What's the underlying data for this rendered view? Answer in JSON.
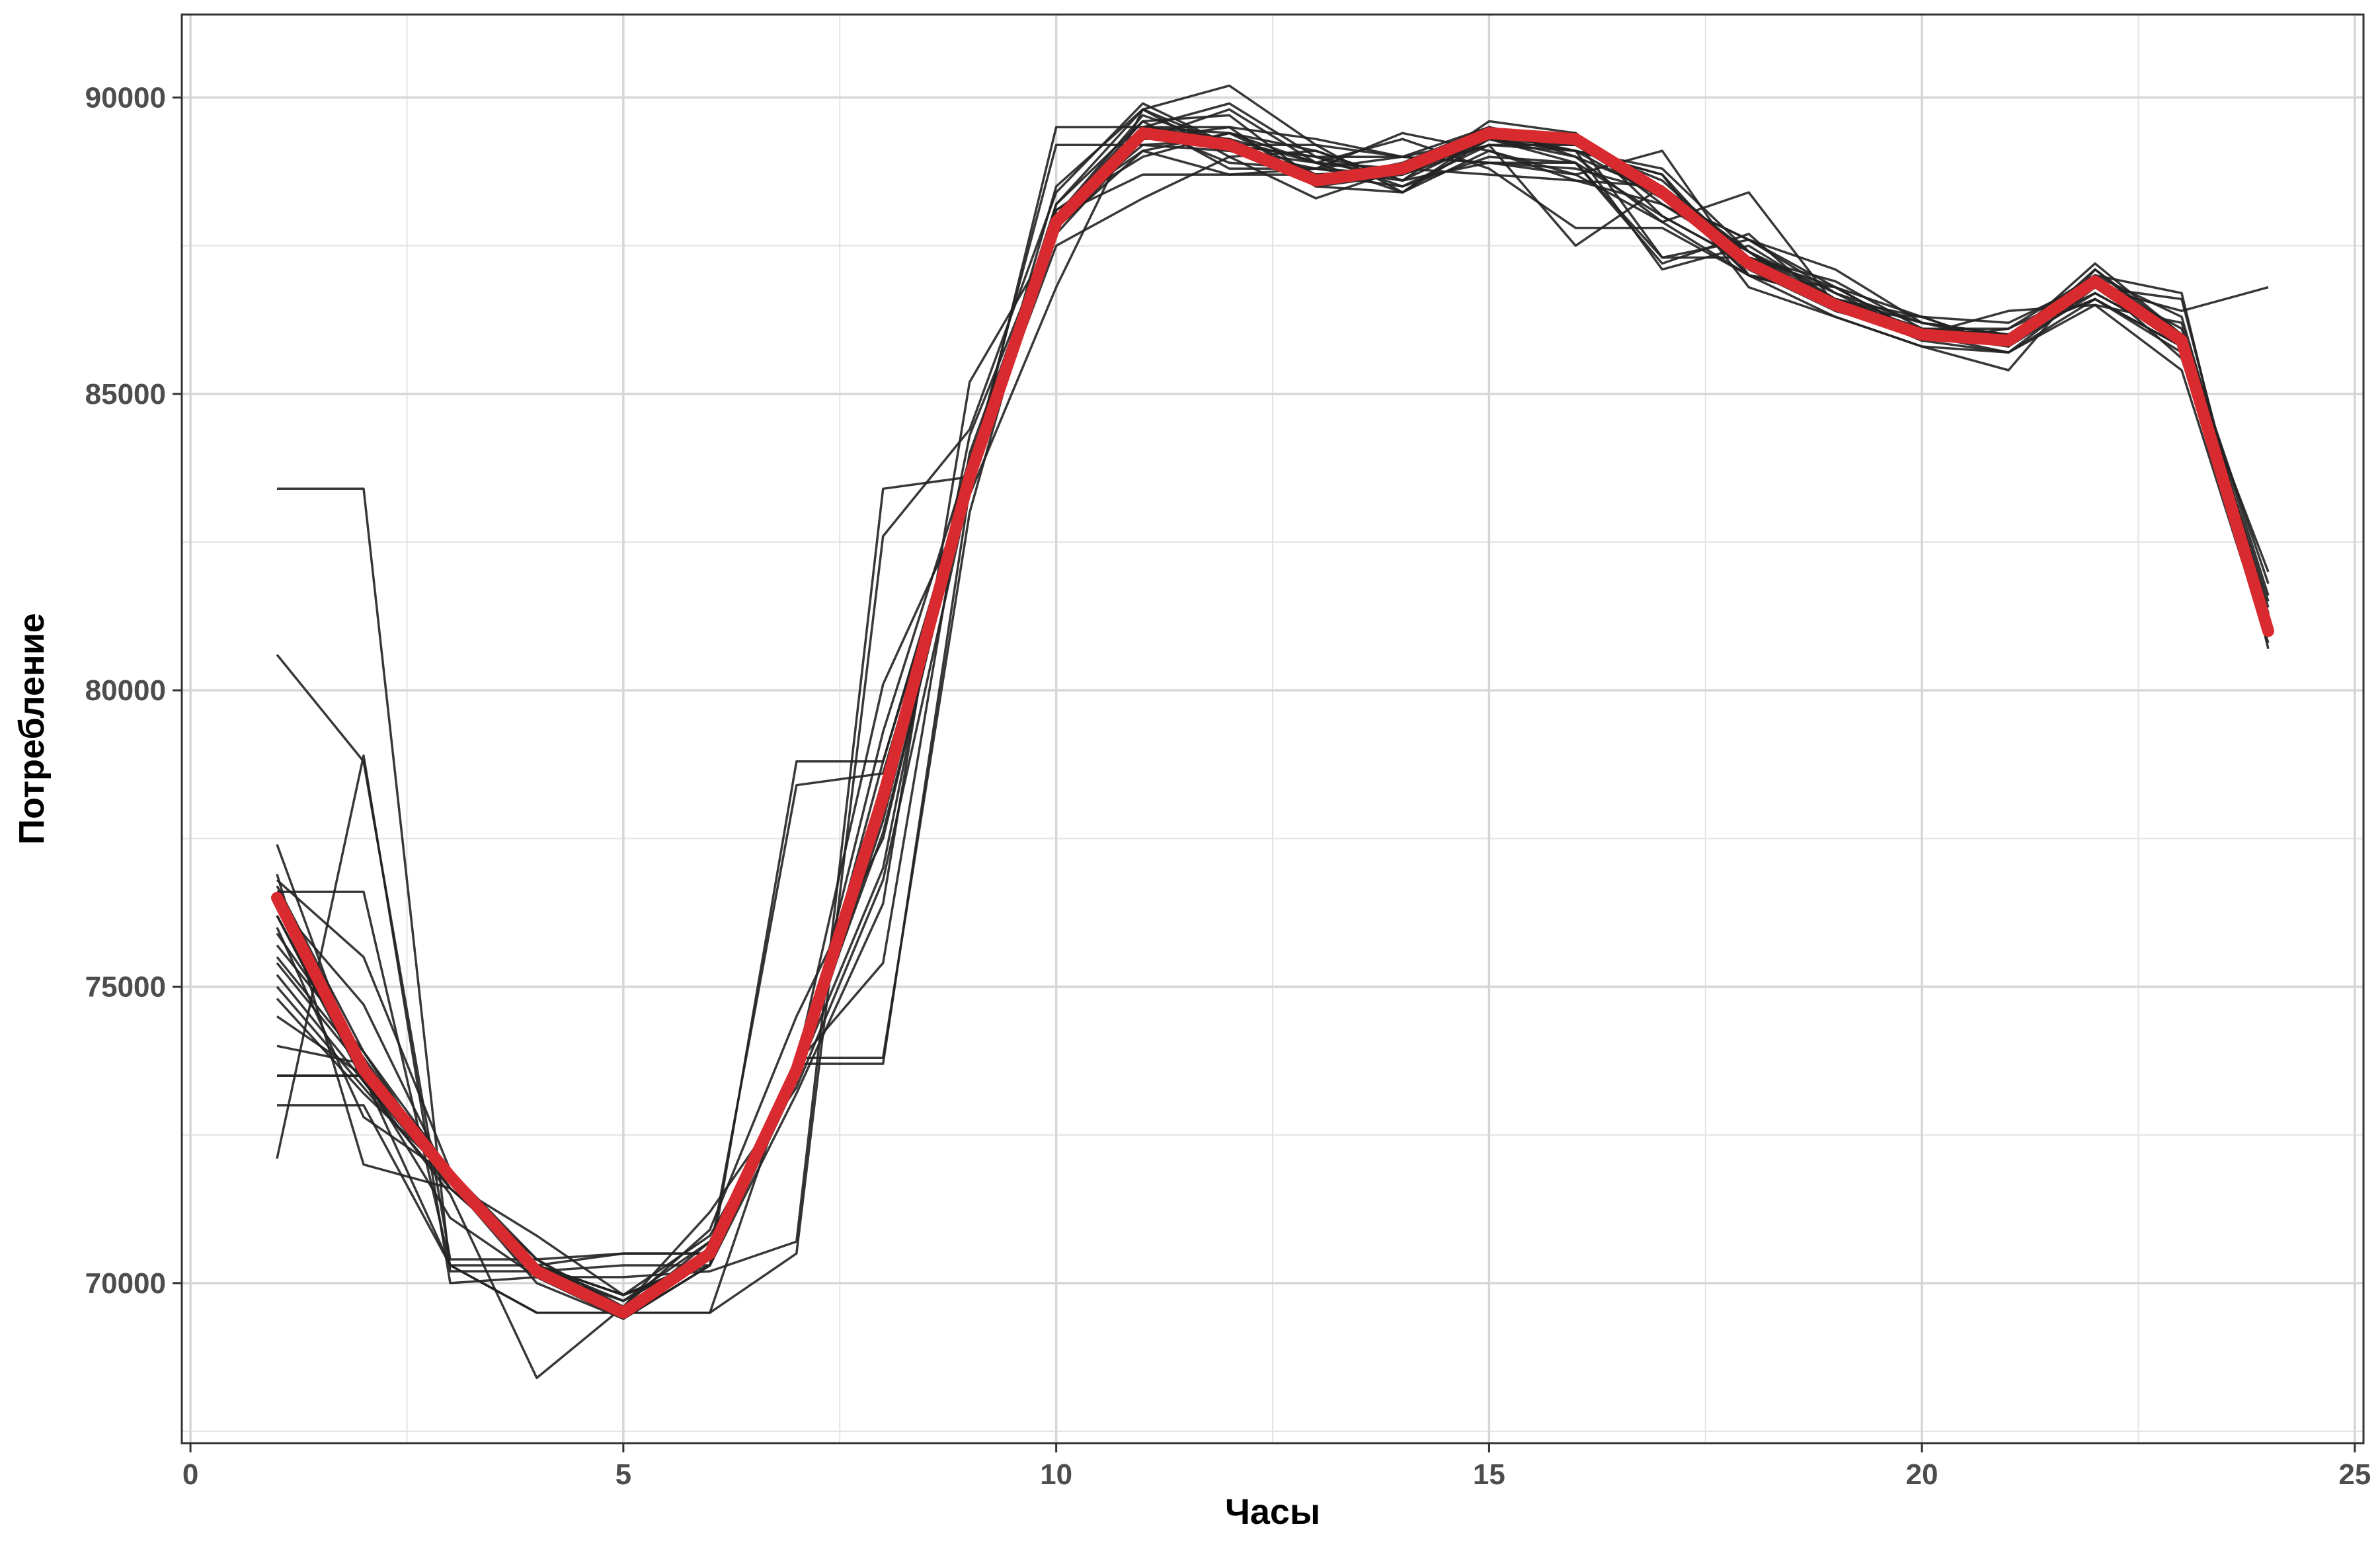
{
  "chart_data": {
    "type": "line",
    "title": "",
    "xlabel": "Часы",
    "ylabel": "Потребление",
    "xlim": [
      -0.1,
      25.1
    ],
    "ylim": [
      67300,
      91400
    ],
    "x_ticks": [
      0,
      5,
      10,
      15,
      20,
      25
    ],
    "y_ticks": [
      70000,
      75000,
      80000,
      85000,
      90000
    ],
    "grid": true,
    "colors": {
      "series_lines": "#222222",
      "mean_line": "#d92b2f",
      "grid": "#e3e3e3",
      "panel_border": "#333333"
    },
    "x": [
      1,
      2,
      3,
      4,
      5,
      6,
      7,
      8,
      9,
      10,
      11,
      12,
      13,
      14,
      15,
      16,
      17,
      18,
      19,
      20,
      21,
      22,
      23,
      24
    ],
    "mean": {
      "values": [
        76500,
        73600,
        71800,
        70200,
        69500,
        70500,
        73600,
        78200,
        83600,
        87900,
        89400,
        89200,
        88600,
        88800,
        89400,
        89300,
        88400,
        87200,
        86500,
        86000,
        85900,
        86900,
        85900,
        81000
      ]
    },
    "series": [
      {
        "values": [
          83400,
          83400,
          70200,
          70200,
          70300,
          70300,
          78800,
          78800,
          83700,
          89200,
          89200,
          89100,
          88900,
          88800,
          88700,
          88600,
          88500,
          87400,
          86700,
          86200,
          85900,
          86800,
          86000,
          81500
        ]
      },
      {
        "values": [
          80600,
          78800,
          70400,
          70400,
          70500,
          70500,
          78400,
          78600,
          83500,
          89500,
          89500,
          89500,
          89300,
          89000,
          88900,
          88800,
          88400,
          87300,
          86900,
          86100,
          86000,
          86900,
          86100,
          81800
        ]
      },
      {
        "values": [
          72100,
          78900,
          70000,
          70100,
          70100,
          70200,
          70700,
          83400,
          83600,
          88000,
          89500,
          89900,
          89000,
          88700,
          89400,
          89100,
          87100,
          87500,
          86600,
          86100,
          86100,
          87000,
          86300,
          81300
        ]
      },
      {
        "values": [
          73500,
          73500,
          70300,
          69500,
          69500,
          69500,
          70500,
          82600,
          84400,
          88400,
          89900,
          89200,
          89200,
          89000,
          88900,
          88700,
          87900,
          88400,
          86500,
          85900,
          85700,
          86500,
          86200,
          81600
        ]
      },
      {
        "values": [
          73000,
          73000,
          70300,
          69500,
          69500,
          69500,
          73800,
          73800,
          83000,
          88200,
          89800,
          89200,
          89000,
          88500,
          89000,
          88900,
          88000,
          87200,
          86600,
          86000,
          86000,
          86900,
          85900,
          81300
        ]
      },
      {
        "values": [
          76600,
          76600,
          70300,
          70300,
          70500,
          70500,
          73700,
          73700,
          83400,
          88500,
          89800,
          89000,
          89100,
          88600,
          89600,
          89400,
          88300,
          87600,
          86800,
          86300,
          85800,
          87000,
          85800,
          81200
        ]
      },
      {
        "values": [
          76900,
          72000,
          71600,
          70300,
          69800,
          70400,
          73500,
          78300,
          83500,
          88000,
          88700,
          88700,
          88800,
          88700,
          89300,
          89200,
          88600,
          87300,
          86600,
          86000,
          85900,
          86800,
          85800,
          80900
        ]
      },
      {
        "values": [
          77400,
          73400,
          71500,
          68400,
          69600,
          71200,
          73300,
          76800,
          83400,
          87900,
          89500,
          89300,
          88500,
          88400,
          89100,
          88700,
          89100,
          87000,
          86600,
          86100,
          86000,
          86900,
          85800,
          81100
        ]
      },
      {
        "values": [
          76800,
          75500,
          71900,
          70200,
          69600,
          70900,
          74500,
          77500,
          83600,
          88100,
          89000,
          89400,
          88900,
          88400,
          89400,
          89100,
          88800,
          87400,
          86600,
          86200,
          86000,
          86700,
          85900,
          81000
        ]
      },
      {
        "values": [
          76400,
          74700,
          71700,
          70800,
          69800,
          70300,
          73700,
          75400,
          84000,
          88000,
          89600,
          89700,
          88600,
          88800,
          89200,
          87500,
          88500,
          87000,
          86300,
          85800,
          85700,
          86600,
          85700,
          81100
        ]
      },
      {
        "values": [
          76200,
          73500,
          71100,
          70100,
          69400,
          70300,
          73400,
          79300,
          83900,
          87800,
          89100,
          88700,
          88700,
          88800,
          89400,
          89300,
          87300,
          87300,
          86800,
          86000,
          85800,
          87100,
          86000,
          81200
        ]
      },
      {
        "values": [
          76000,
          72800,
          71800,
          70400,
          69500,
          70700,
          73700,
          80100,
          83300,
          86800,
          89800,
          90200,
          89200,
          88400,
          89300,
          89100,
          88700,
          86800,
          86300,
          85800,
          85400,
          87100,
          85900,
          81000
        ]
      },
      {
        "values": [
          75900,
          73800,
          71800,
          70300,
          69800,
          70400,
          73500,
          77000,
          84300,
          87900,
          89500,
          89400,
          89100,
          88600,
          88900,
          88900,
          87300,
          87600,
          87100,
          86200,
          86000,
          86600,
          85800,
          81400
        ]
      },
      {
        "values": [
          75700,
          73900,
          71900,
          70200,
          69400,
          70300,
          73200,
          76400,
          85200,
          87700,
          89300,
          89800,
          88900,
          89300,
          88800,
          87800,
          87800,
          87000,
          86600,
          86300,
          86200,
          86900,
          85600,
          81200
        ]
      },
      {
        "values": [
          75500,
          73700,
          71700,
          70300,
          69800,
          70800,
          73400,
          78800,
          83600,
          87500,
          88300,
          89000,
          88300,
          88800,
          89300,
          88900,
          87200,
          87700,
          86400,
          86000,
          86400,
          86500,
          85400,
          80800
        ]
      },
      {
        "values": [
          75400,
          73600,
          71800,
          70200,
          69700,
          70500,
          73600,
          77600,
          83500,
          88000,
          89700,
          89200,
          89000,
          89000,
          89300,
          89000,
          87900,
          87000,
          86800,
          86000,
          86000,
          87000,
          85800,
          81000
        ]
      },
      {
        "values": [
          75200,
          73400,
          71700,
          70100,
          69500,
          70600,
          73700,
          78100,
          83400,
          87900,
          89500,
          88900,
          88800,
          89400,
          89100,
          88600,
          88200,
          87400,
          86400,
          86300,
          85800,
          86700,
          85900,
          81100
        ]
      },
      {
        "values": [
          75000,
          73300,
          71600,
          70300,
          69600,
          70400,
          73500,
          78500,
          83500,
          88000,
          89200,
          89300,
          88900,
          88700,
          89300,
          89400,
          88000,
          87200,
          86500,
          86000,
          86000,
          86600,
          85800,
          81300
        ]
      },
      {
        "values": [
          74800,
          73200,
          71800,
          70200,
          69500,
          70500,
          73800,
          78000,
          83700,
          88200,
          89600,
          88800,
          88800,
          89000,
          89500,
          89000,
          88400,
          87000,
          86600,
          86100,
          85900,
          86900,
          85900,
          80900
        ]
      },
      {
        "values": [
          74500,
          73500,
          71700,
          70000,
          69400,
          70500,
          73400,
          77800,
          83600,
          87900,
          89300,
          89500,
          88500,
          88700,
          89200,
          89200,
          88300,
          87600,
          86700,
          86000,
          85700,
          86800,
          86600,
          81000
        ]
      },
      {
        "values": [
          74000,
          73700,
          71600,
          70300,
          69700,
          70700,
          73500,
          78200,
          83500,
          87800,
          89400,
          89100,
          88800,
          88600,
          89300,
          89100,
          88700,
          87100,
          86400,
          86000,
          85900,
          87200,
          86000,
          81200
        ]
      },
      {
        "values": [
          73500,
          73500,
          71900,
          70400,
          69600,
          70500,
          73700,
          78400,
          83600,
          88100,
          89100,
          89400,
          88700,
          88800,
          89400,
          89300,
          88200,
          87300,
          86500,
          85900,
          86100,
          86800,
          86400,
          86800
        ]
      },
      {
        "values": [
          76200,
          73400,
          71800,
          70300,
          69400,
          70300,
          73600,
          78000,
          83600,
          88000,
          89500,
          89200,
          88700,
          88500,
          89200,
          89100,
          88300,
          87200,
          86600,
          86100,
          85900,
          87000,
          86700,
          80700
        ]
      },
      {
        "values": [
          76700,
          73900,
          71700,
          70100,
          69500,
          70400,
          73500,
          78300,
          83500,
          87900,
          89300,
          89300,
          88600,
          88900,
          89500,
          89200,
          88400,
          87400,
          86500,
          86000,
          86000,
          86900,
          85800,
          82000
        ]
      }
    ]
  }
}
